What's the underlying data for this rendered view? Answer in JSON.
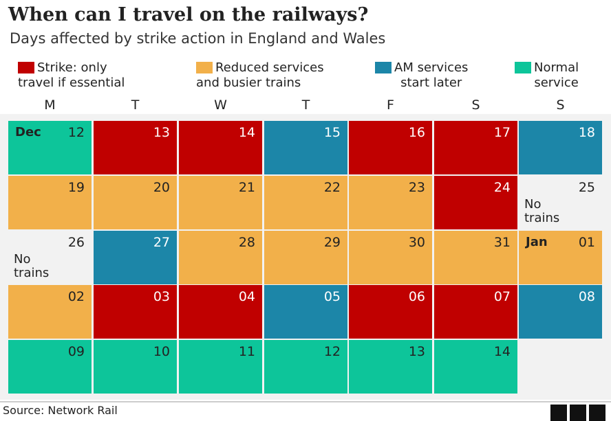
{
  "chart_data": {
    "type": "table",
    "title": "When can I travel on the railways?",
    "subtitle": "Days affected by strike action in England and Wales",
    "legend": [
      {
        "key": "strike",
        "line1": "Strike: only",
        "line2": "travel if essential",
        "color": "#c00000"
      },
      {
        "key": "reduced",
        "line1": "Reduced services",
        "line2": "and busier trains",
        "color": "#f2b04a"
      },
      {
        "key": "am",
        "line1": "AM services",
        "line2": "start later",
        "color": "#1c86a8"
      },
      {
        "key": "normal",
        "line1": "Normal",
        "line2": "service",
        "color": "#0dc59a"
      }
    ],
    "weekdays": [
      "M",
      "T",
      "W",
      "T",
      "F",
      "S",
      "S"
    ],
    "weeks": [
      [
        {
          "day": "12",
          "month": "Dec",
          "status": "normal"
        },
        {
          "day": "13",
          "status": "strike"
        },
        {
          "day": "14",
          "status": "strike"
        },
        {
          "day": "15",
          "status": "am"
        },
        {
          "day": "16",
          "status": "strike"
        },
        {
          "day": "17",
          "status": "strike"
        },
        {
          "day": "18",
          "status": "am"
        }
      ],
      [
        {
          "day": "19",
          "status": "reduced"
        },
        {
          "day": "20",
          "status": "reduced"
        },
        {
          "day": "21",
          "status": "reduced"
        },
        {
          "day": "22",
          "status": "reduced"
        },
        {
          "day": "23",
          "status": "reduced"
        },
        {
          "day": "24",
          "status": "strike"
        },
        {
          "day": "25",
          "status": "none",
          "note": "No trains"
        }
      ],
      [
        {
          "day": "26",
          "status": "none",
          "note": "No trains"
        },
        {
          "day": "27",
          "status": "am"
        },
        {
          "day": "28",
          "status": "reduced"
        },
        {
          "day": "29",
          "status": "reduced"
        },
        {
          "day": "30",
          "status": "reduced"
        },
        {
          "day": "31",
          "status": "reduced"
        },
        {
          "day": "01",
          "month": "Jan",
          "status": "reduced"
        }
      ],
      [
        {
          "day": "02",
          "status": "reduced"
        },
        {
          "day": "03",
          "status": "strike"
        },
        {
          "day": "04",
          "status": "strike"
        },
        {
          "day": "05",
          "status": "am"
        },
        {
          "day": "06",
          "status": "strike"
        },
        {
          "day": "07",
          "status": "strike"
        },
        {
          "day": "08",
          "status": "am"
        }
      ],
      [
        {
          "day": "09",
          "status": "normal"
        },
        {
          "day": "10",
          "status": "normal"
        },
        {
          "day": "11",
          "status": "normal"
        },
        {
          "day": "12",
          "status": "normal"
        },
        {
          "day": "13",
          "status": "normal"
        },
        {
          "day": "14",
          "status": "normal"
        }
      ]
    ],
    "source": "Source: Network Rail",
    "logo": "BBC"
  }
}
